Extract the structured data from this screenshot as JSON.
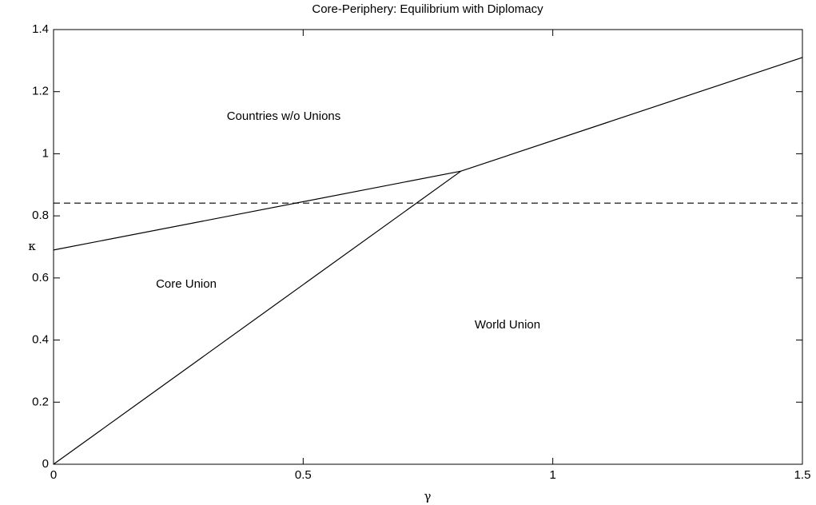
{
  "chart_data": {
    "type": "line",
    "title": "Core-Periphery: Equilibrium with Diplomacy",
    "x_label": "γ",
    "y_label": "κ",
    "xlim": [
      0,
      1.5
    ],
    "ylim": [
      0,
      1.4
    ],
    "xticks": [
      0,
      0.5,
      1,
      1.5
    ],
    "yticks": [
      0,
      0.2,
      0.4,
      0.6,
      0.8,
      1,
      1.2,
      1.4
    ],
    "grid": false,
    "series": [
      {
        "color": "#000000",
        "linestyle": "solid",
        "x": [
          0,
          0.816,
          1.5
        ],
        "values": [
          0.69,
          0.944,
          1.31
        ]
      },
      {
        "color": "#000000",
        "linestyle": "solid",
        "x": [
          0,
          0.816
        ],
        "values": [
          0,
          0.944
        ]
      },
      {
        "color": "#000000",
        "linestyle": "dashed",
        "x": [
          0,
          1.5
        ],
        "values": [
          0.841,
          0.841
        ]
      }
    ],
    "annotations": [
      "Countries w/o Unions",
      "Core Union",
      "World Union"
    ]
  }
}
